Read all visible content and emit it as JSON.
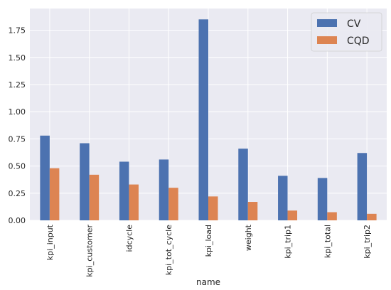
{
  "chart_data": {
    "type": "bar",
    "categories": [
      "kpi_input",
      "kpi_customer",
      "idcycle",
      "kpi_tot_cycle",
      "kpi_load",
      "weight",
      "kpi_trip1",
      "kpi_total",
      "kpi_trip2"
    ],
    "series": [
      {
        "name": "CV",
        "color": "#4c72b0",
        "values": [
          0.78,
          0.71,
          0.54,
          0.56,
          1.85,
          0.66,
          0.41,
          0.39,
          0.62
        ]
      },
      {
        "name": "CQD",
        "color": "#dd8452",
        "values": [
          0.48,
          0.42,
          0.33,
          0.3,
          0.22,
          0.17,
          0.09,
          0.075,
          0.06
        ]
      }
    ],
    "xlabel": "name",
    "ylabel": "",
    "ylim": [
      0,
      1.95
    ],
    "yticks": [
      0.0,
      0.25,
      0.5,
      0.75,
      1.0,
      1.25,
      1.5,
      1.75
    ],
    "ytick_labels": [
      "0.00",
      "0.25",
      "0.50",
      "0.75",
      "1.00",
      "1.25",
      "1.50",
      "1.75"
    ],
    "grid": true,
    "legend_position": "top-right",
    "background": "#eaeaf2"
  }
}
